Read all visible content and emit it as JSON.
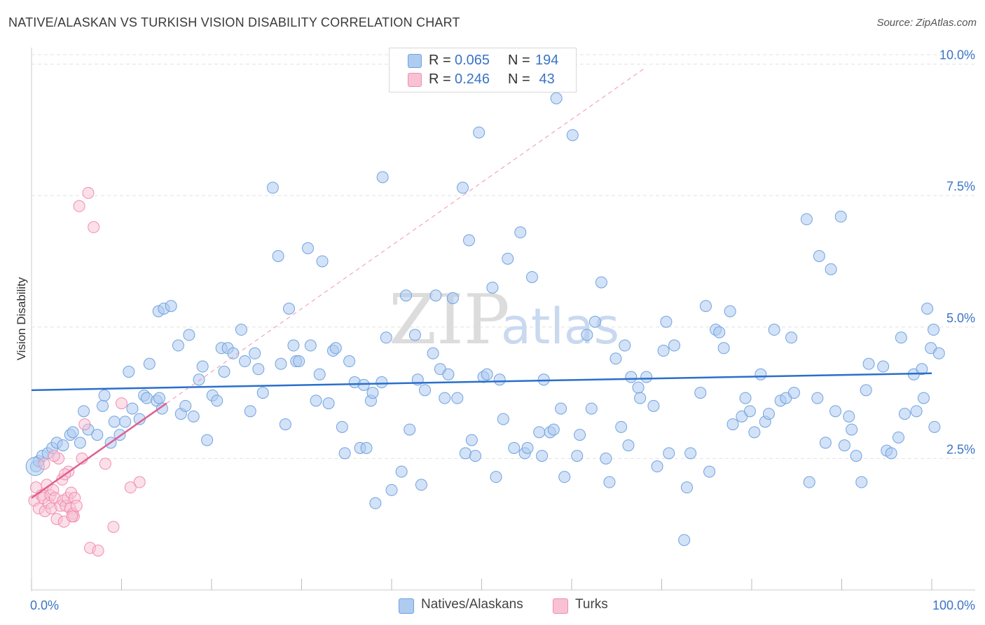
{
  "title": "NATIVE/ALASKAN VS TURKISH VISION DISABILITY CORRELATION CHART",
  "source": "Source: ZipAtlas.com",
  "colors": {
    "blue": "#6fa3e0",
    "blue_fill": "#aecbf0",
    "blue_line": "#2a6fcb",
    "pink": "#f08db0",
    "pink_fill": "#f8c1d4",
    "pink_line": "#e0608f",
    "tick_label": "#3a74c6",
    "grid": "#e2e2e2"
  },
  "legend": {
    "rows": [
      {
        "r_label": "R = ",
        "r_value": "0.065",
        "n_label": "N = ",
        "n_value": "194"
      },
      {
        "r_label": "R = ",
        "r_value": "0.246",
        "n_label": "N = ",
        "n_value": " 43"
      }
    ]
  },
  "chart_data": {
    "type": "scatter",
    "title": "NATIVE/ALASKAN VS TURKISH VISION DISABILITY CORRELATION CHART",
    "xlabel": "",
    "ylabel": "Vision Disability",
    "xlim": [
      0,
      100
    ],
    "ylim": [
      0,
      10.5
    ],
    "x_tick_labels": [
      "0.0%",
      "100.0%"
    ],
    "y_ticks": [
      2.5,
      5.0,
      7.5,
      10.0
    ],
    "y_tick_labels": [
      "2.5%",
      "5.0%",
      "7.5%",
      "10.0%"
    ],
    "grid": true,
    "watermark": {
      "zip": "ZIP",
      "atlas": "atlas"
    },
    "series": [
      {
        "name": "Natives/Alaskans",
        "color": "#6fa3e0",
        "trend": {
          "x": [
            0,
            100
          ],
          "y": [
            3.8,
            4.12
          ]
        },
        "points": [
          [
            0.5,
            2.35
          ],
          [
            0.8,
            2.45
          ],
          [
            1.2,
            2.55
          ],
          [
            1.8,
            2.6
          ],
          [
            2.3,
            2.7
          ],
          [
            2.8,
            2.8
          ],
          [
            3.5,
            2.75
          ],
          [
            4.3,
            2.95
          ],
          [
            4.6,
            3.0
          ],
          [
            5.4,
            2.8
          ],
          [
            5.8,
            3.4
          ],
          [
            6.3,
            3.05
          ],
          [
            7.3,
            2.95
          ],
          [
            7.9,
            3.5
          ],
          [
            8.1,
            3.7
          ],
          [
            8.8,
            2.8
          ],
          [
            9.2,
            3.2
          ],
          [
            9.8,
            2.95
          ],
          [
            10.4,
            3.2
          ],
          [
            10.8,
            4.15
          ],
          [
            11.2,
            3.45
          ],
          [
            12.0,
            3.25
          ],
          [
            12.5,
            3.7
          ],
          [
            12.8,
            3.65
          ],
          [
            13.1,
            4.3
          ],
          [
            13.9,
            3.6
          ],
          [
            14.2,
            3.65
          ],
          [
            14.5,
            3.45
          ],
          [
            14.1,
            5.3
          ],
          [
            14.7,
            5.35
          ],
          [
            15.5,
            5.4
          ],
          [
            16.3,
            4.65
          ],
          [
            16.6,
            3.35
          ],
          [
            17.1,
            3.5
          ],
          [
            17.5,
            4.85
          ],
          [
            18.0,
            3.3
          ],
          [
            18.6,
            4.0
          ],
          [
            19.0,
            4.25
          ],
          [
            19.5,
            2.85
          ],
          [
            20.1,
            3.7
          ],
          [
            20.6,
            3.6
          ],
          [
            21.1,
            4.6
          ],
          [
            21.4,
            4.15
          ],
          [
            21.8,
            4.6
          ],
          [
            22.4,
            4.5
          ],
          [
            23.3,
            4.95
          ],
          [
            23.7,
            4.35
          ],
          [
            24.3,
            3.4
          ],
          [
            24.8,
            4.5
          ],
          [
            25.2,
            4.2
          ],
          [
            25.7,
            3.75
          ],
          [
            26.8,
            7.65
          ],
          [
            27.4,
            6.35
          ],
          [
            27.7,
            4.3
          ],
          [
            28.2,
            3.15
          ],
          [
            28.6,
            5.35
          ],
          [
            29.1,
            4.65
          ],
          [
            29.4,
            4.35
          ],
          [
            29.7,
            4.35
          ],
          [
            30.7,
            6.5
          ],
          [
            31.0,
            4.65
          ],
          [
            31.6,
            3.6
          ],
          [
            32.0,
            4.1
          ],
          [
            32.3,
            6.25
          ],
          [
            33.0,
            3.55
          ],
          [
            33.5,
            4.55
          ],
          [
            33.8,
            4.6
          ],
          [
            34.5,
            3.1
          ],
          [
            34.8,
            2.6
          ],
          [
            35.3,
            4.35
          ],
          [
            35.9,
            3.95
          ],
          [
            36.5,
            2.7
          ],
          [
            36.9,
            3.9
          ],
          [
            37.2,
            2.7
          ],
          [
            37.7,
            3.6
          ],
          [
            37.9,
            3.75
          ],
          [
            38.2,
            1.65
          ],
          [
            38.9,
            3.95
          ],
          [
            39.0,
            7.85
          ],
          [
            39.4,
            4.8
          ],
          [
            40.0,
            1.9
          ],
          [
            41.1,
            2.25
          ],
          [
            41.6,
            5.6
          ],
          [
            42.0,
            3.05
          ],
          [
            42.6,
            4.85
          ],
          [
            42.9,
            4.0
          ],
          [
            43.3,
            2.0
          ],
          [
            43.7,
            3.8
          ],
          [
            44.6,
            4.5
          ],
          [
            44.9,
            5.6
          ],
          [
            45.4,
            4.2
          ],
          [
            45.9,
            3.65
          ],
          [
            46.3,
            4.1
          ],
          [
            46.8,
            5.55
          ],
          [
            47.3,
            3.65
          ],
          [
            47.9,
            7.65
          ],
          [
            48.2,
            2.6
          ],
          [
            48.6,
            6.65
          ],
          [
            48.9,
            2.85
          ],
          [
            49.3,
            2.55
          ],
          [
            49.7,
            8.7
          ],
          [
            50.2,
            4.05
          ],
          [
            50.6,
            4.1
          ],
          [
            51.2,
            5.75
          ],
          [
            51.6,
            2.15
          ],
          [
            52.0,
            4.0
          ],
          [
            52.4,
            3.25
          ],
          [
            52.9,
            6.3
          ],
          [
            53.6,
            2.7
          ],
          [
            54.3,
            6.8
          ],
          [
            54.8,
            2.6
          ],
          [
            55.1,
            2.7
          ],
          [
            55.6,
            5.95
          ],
          [
            56.4,
            3.0
          ],
          [
            56.7,
            2.55
          ],
          [
            56.9,
            4.0
          ],
          [
            57.6,
            3.0
          ],
          [
            58.0,
            3.05
          ],
          [
            58.3,
            9.35
          ],
          [
            58.8,
            3.45
          ],
          [
            59.2,
            2.15
          ],
          [
            60.1,
            8.65
          ],
          [
            60.6,
            2.55
          ],
          [
            60.9,
            2.95
          ],
          [
            61.7,
            4.85
          ],
          [
            62.2,
            3.45
          ],
          [
            62.6,
            5.1
          ],
          [
            63.3,
            5.85
          ],
          [
            63.8,
            2.5
          ],
          [
            64.2,
            2.05
          ],
          [
            64.9,
            4.4
          ],
          [
            65.5,
            3.1
          ],
          [
            65.9,
            4.65
          ],
          [
            66.3,
            2.75
          ],
          [
            66.6,
            4.05
          ],
          [
            67.4,
            3.85
          ],
          [
            67.6,
            3.65
          ],
          [
            68.3,
            4.05
          ],
          [
            69.1,
            3.5
          ],
          [
            69.5,
            2.35
          ],
          [
            70.2,
            4.55
          ],
          [
            70.5,
            5.1
          ],
          [
            70.8,
            2.6
          ],
          [
            71.4,
            4.65
          ],
          [
            72.5,
            0.95
          ],
          [
            72.8,
            1.95
          ],
          [
            73.2,
            2.6
          ],
          [
            74.3,
            3.75
          ],
          [
            74.9,
            5.4
          ],
          [
            75.3,
            2.25
          ],
          [
            76.0,
            4.95
          ],
          [
            76.4,
            4.9
          ],
          [
            76.9,
            4.6
          ],
          [
            77.6,
            5.3
          ],
          [
            77.9,
            3.15
          ],
          [
            78.9,
            3.3
          ],
          [
            79.3,
            3.65
          ],
          [
            79.8,
            3.4
          ],
          [
            80.3,
            3.0
          ],
          [
            81.0,
            4.1
          ],
          [
            81.5,
            3.2
          ],
          [
            81.9,
            3.35
          ],
          [
            82.5,
            4.95
          ],
          [
            83.2,
            3.6
          ],
          [
            83.8,
            3.65
          ],
          [
            84.4,
            4.8
          ],
          [
            84.7,
            3.75
          ],
          [
            86.1,
            7.05
          ],
          [
            86.4,
            2.05
          ],
          [
            87.3,
            3.65
          ],
          [
            87.5,
            6.35
          ],
          [
            88.2,
            2.8
          ],
          [
            88.8,
            6.1
          ],
          [
            89.3,
            3.4
          ],
          [
            89.9,
            7.1
          ],
          [
            90.3,
            2.75
          ],
          [
            90.8,
            3.3
          ],
          [
            91.1,
            3.05
          ],
          [
            91.6,
            2.55
          ],
          [
            92.2,
            2.05
          ],
          [
            92.7,
            3.8
          ],
          [
            93.0,
            4.3
          ],
          [
            94.6,
            4.25
          ],
          [
            95.0,
            2.65
          ],
          [
            95.5,
            2.6
          ],
          [
            96.3,
            2.9
          ],
          [
            96.6,
            4.8
          ],
          [
            97.0,
            3.35
          ],
          [
            98.0,
            4.1
          ],
          [
            98.3,
            3.4
          ],
          [
            98.9,
            4.2
          ],
          [
            99.5,
            5.35
          ],
          [
            99.9,
            4.6
          ],
          [
            100.2,
            4.95
          ],
          [
            100.8,
            4.5
          ],
          [
            100.3,
            3.1
          ],
          [
            99.1,
            3.65
          ]
        ]
      },
      {
        "name": "Turks",
        "color": "#f08db0",
        "trend": {
          "x": [
            0,
            15
          ],
          "y": [
            1.75,
            3.55
          ]
        },
        "points": [
          [
            0.3,
            1.7
          ],
          [
            0.5,
            1.95
          ],
          [
            0.8,
            1.55
          ],
          [
            1.1,
            1.8
          ],
          [
            1.3,
            1.75
          ],
          [
            1.5,
            1.5
          ],
          [
            1.7,
            2.0
          ],
          [
            1.9,
            1.65
          ],
          [
            2.1,
            1.8
          ],
          [
            2.2,
            1.55
          ],
          [
            2.4,
            1.9
          ],
          [
            2.6,
            1.75
          ],
          [
            2.8,
            1.35
          ],
          [
            3.0,
            2.5
          ],
          [
            3.2,
            1.6
          ],
          [
            3.4,
            2.1
          ],
          [
            3.5,
            1.7
          ],
          [
            3.6,
            1.3
          ],
          [
            3.8,
            1.6
          ],
          [
            4.0,
            1.75
          ],
          [
            4.1,
            2.25
          ],
          [
            4.3,
            1.55
          ],
          [
            4.4,
            1.85
          ],
          [
            4.6,
            1.45
          ],
          [
            4.7,
            1.4
          ],
          [
            4.8,
            1.75
          ],
          [
            5.0,
            1.6
          ],
          [
            5.3,
            7.3
          ],
          [
            5.6,
            2.5
          ],
          [
            5.9,
            3.15
          ],
          [
            6.3,
            7.55
          ],
          [
            6.5,
            0.8
          ],
          [
            6.9,
            6.9
          ],
          [
            7.4,
            0.75
          ],
          [
            8.2,
            2.4
          ],
          [
            9.1,
            1.2
          ],
          [
            10.0,
            3.55
          ],
          [
            11.0,
            1.95
          ],
          [
            12.0,
            2.05
          ],
          [
            1.4,
            2.4
          ],
          [
            2.5,
            2.55
          ],
          [
            3.7,
            2.2
          ],
          [
            4.5,
            1.4
          ]
        ]
      }
    ]
  }
}
